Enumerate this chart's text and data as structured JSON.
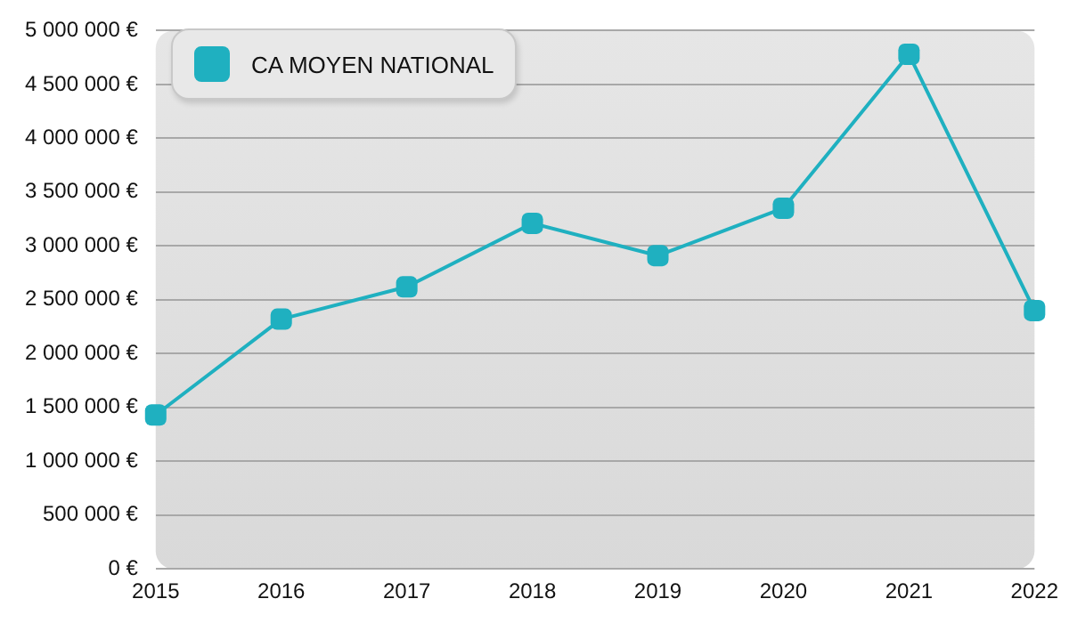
{
  "chart_data": {
    "type": "line",
    "categories": [
      "2015",
      "2016",
      "2017",
      "2018",
      "2019",
      "2020",
      "2021",
      "2022"
    ],
    "series": [
      {
        "name": "CA MOYEN NATIONAL",
        "color": "#1fb0c0",
        "values": [
          1430000,
          2320000,
          2620000,
          3210000,
          2910000,
          3350000,
          4780000,
          2400000
        ]
      }
    ],
    "ylim": [
      0,
      5000000
    ],
    "yticks": [
      {
        "value": 0,
        "label": "0 €"
      },
      {
        "value": 500000,
        "label": "500 000 €"
      },
      {
        "value": 1000000,
        "label": "1 000 000 €"
      },
      {
        "value": 1500000,
        "label": "1 500 000 €"
      },
      {
        "value": 2000000,
        "label": "2 000 000 €"
      },
      {
        "value": 2500000,
        "label": "2 500 000 €"
      },
      {
        "value": 3000000,
        "label": "3 000 000 €"
      },
      {
        "value": 3500000,
        "label": "3 500 000 €"
      },
      {
        "value": 4000000,
        "label": "4 000 000 €"
      },
      {
        "value": 4500000,
        "label": "4 500 000 €"
      },
      {
        "value": 5000000,
        "label": "5 000 000 €"
      }
    ],
    "grid": "y",
    "legend": "top left",
    "marker": "square",
    "line_style": "solid"
  }
}
